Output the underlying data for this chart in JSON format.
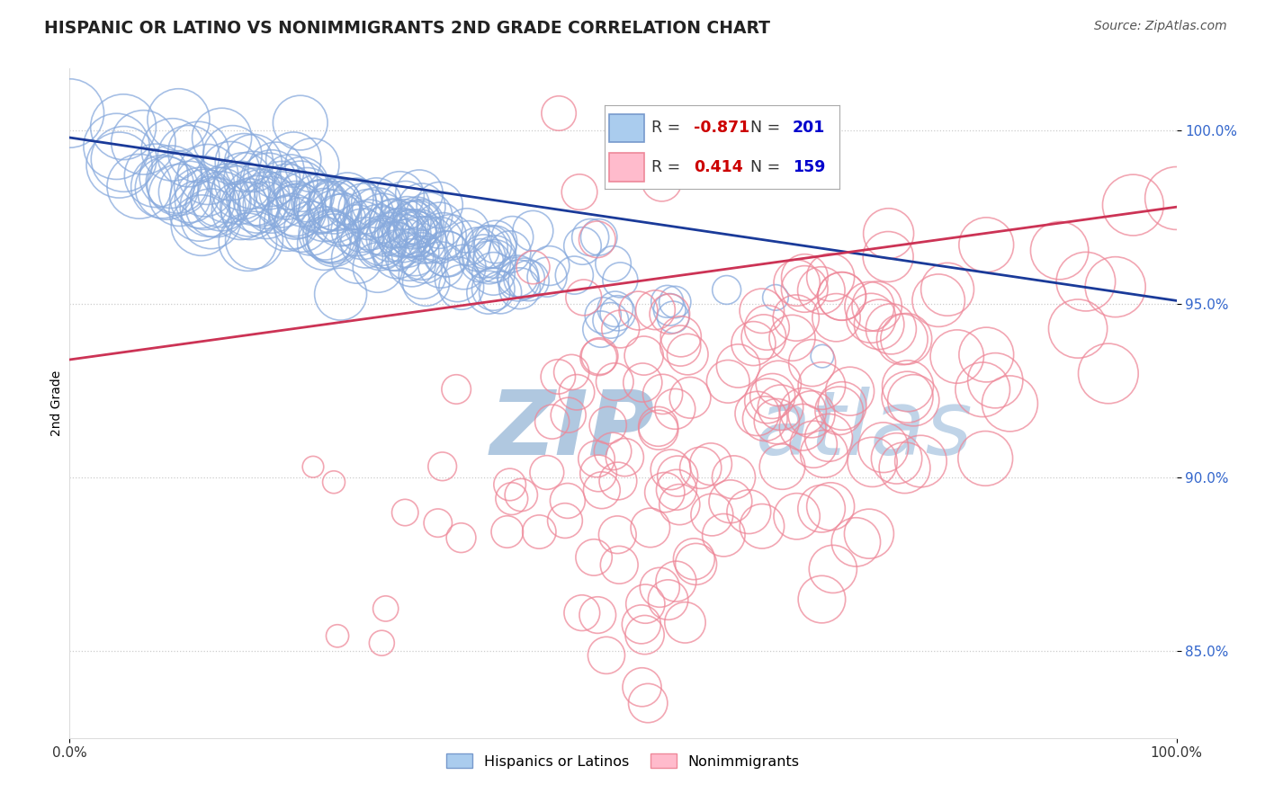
{
  "title": "HISPANIC OR LATINO VS NONIMMIGRANTS 2ND GRADE CORRELATION CHART",
  "source": "Source: ZipAtlas.com",
  "ylabel": "2nd Grade",
  "xlim": [
    0.0,
    1.0
  ],
  "ylim": [
    0.825,
    1.018
  ],
  "yticks": [
    0.85,
    0.9,
    0.95,
    1.0
  ],
  "ytick_labels": [
    "85.0%",
    "90.0%",
    "95.0%",
    "100.0%"
  ],
  "xticks": [
    0.0,
    1.0
  ],
  "xtick_labels": [
    "0.0%",
    "100.0%"
  ],
  "blue_R": -0.871,
  "blue_N": 201,
  "pink_R": 0.414,
  "pink_N": 159,
  "blue_scatter_color": "#88aadd",
  "pink_scatter_color": "#ee8899",
  "blue_line_color": "#1a3a99",
  "pink_line_color": "#cc3355",
  "blue_trend_x0": 0.0,
  "blue_trend_y0": 0.998,
  "blue_trend_x1": 1.0,
  "blue_trend_y1": 0.951,
  "pink_trend_x0": 0.0,
  "pink_trend_y0": 0.934,
  "pink_trend_x1": 1.0,
  "pink_trend_y1": 0.978,
  "watermark_zip_color": "#b0c8e0",
  "watermark_atlas_color": "#c0d4e8",
  "background_color": "#ffffff",
  "grid_color": "#cccccc",
  "title_color": "#222222",
  "title_fontsize": 13.5,
  "seed": 7
}
